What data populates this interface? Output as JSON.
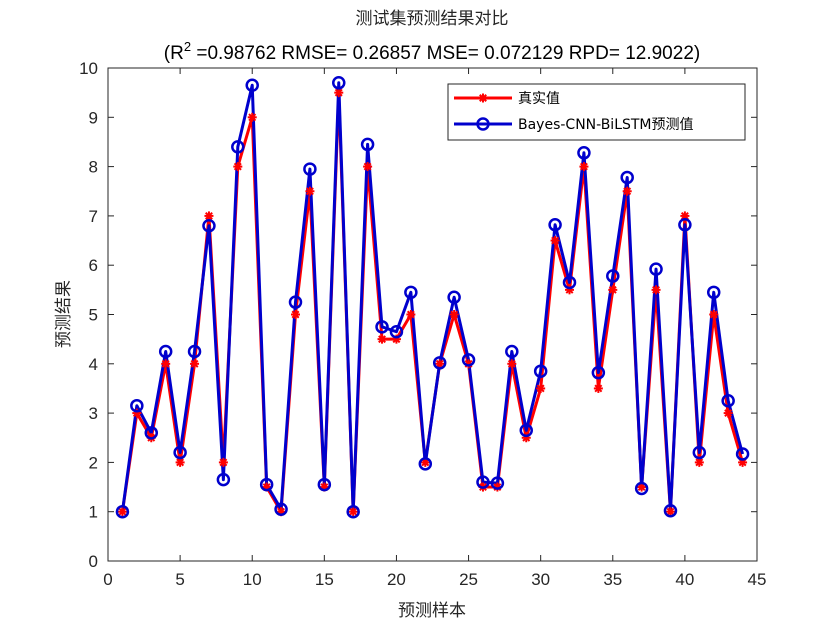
{
  "chart_data": {
    "type": "line",
    "title": "测试集预测结果对比",
    "subtitle": {
      "prefix": "(R",
      "superscript": "2",
      "suffix": " =0.98762 RMSE= 0.26857 MSE= 0.072129 RPD= 12.9022)"
    },
    "xlabel": "预测样本",
    "ylabel": "预测结果",
    "xlim": [
      0,
      45
    ],
    "ylim": [
      0,
      10
    ],
    "xticks": [
      0,
      5,
      10,
      15,
      20,
      25,
      30,
      35,
      40,
      45
    ],
    "yticks": [
      0,
      1,
      2,
      3,
      4,
      5,
      6,
      7,
      8,
      9,
      10
    ],
    "legend_position": "top-right",
    "x": [
      1,
      2,
      3,
      4,
      5,
      6,
      7,
      8,
      9,
      10,
      11,
      12,
      13,
      14,
      15,
      16,
      17,
      18,
      19,
      20,
      21,
      22,
      23,
      24,
      25,
      26,
      27,
      28,
      29,
      30,
      31,
      32,
      33,
      34,
      35,
      36,
      37,
      38,
      39,
      40,
      41,
      42,
      43,
      44
    ],
    "series": [
      {
        "name": "真实值",
        "color": "#ff0000",
        "marker": "asterisk",
        "values": [
          1,
          3,
          2.5,
          4,
          2,
          4,
          7,
          2,
          8,
          9,
          1.5,
          1,
          5,
          7.5,
          1.5,
          9.5,
          1,
          8,
          4.5,
          4.5,
          5,
          2,
          4,
          5,
          4,
          1.5,
          1.5,
          4,
          2.5,
          3.5,
          6.5,
          5.5,
          8,
          3.5,
          5.5,
          7.5,
          1.5,
          5.5,
          1,
          7,
          2,
          5,
          3,
          2
        ]
      },
      {
        "name": "Bayes-CNN-BiLSTM预测值",
        "color": "#0000cd",
        "marker": "circle",
        "values": [
          1,
          3.15,
          2.6,
          4.25,
          2.2,
          4.25,
          6.8,
          1.65,
          8.4,
          9.65,
          1.55,
          1.05,
          5.25,
          7.95,
          1.55,
          9.7,
          1,
          8.45,
          4.75,
          4.65,
          5.45,
          1.97,
          4.02,
          5.35,
          4.08,
          1.6,
          1.58,
          4.25,
          2.65,
          3.85,
          6.82,
          5.65,
          8.28,
          3.82,
          5.78,
          7.78,
          1.47,
          5.92,
          1.02,
          6.82,
          2.2,
          5.45,
          3.25,
          2.17
        ]
      }
    ]
  }
}
